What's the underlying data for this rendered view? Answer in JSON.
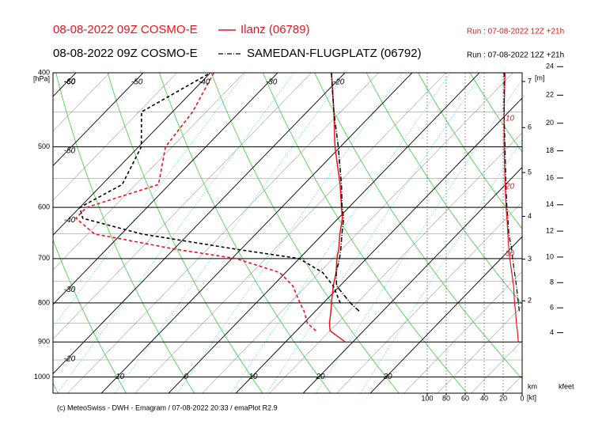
{
  "chart_data": {
    "type": "emagram",
    "y_label": "[hPa]",
    "ylim": [
      400,
      1050
    ],
    "yticks": [
      400,
      500,
      600,
      700,
      800,
      900,
      1000
    ],
    "log_y": true,
    "xticks": [
      -60,
      -50,
      -40,
      -30,
      -20,
      -10,
      0,
      10,
      20,
      30
    ],
    "height_label": "[m]",
    "km_label": "km",
    "km_ticks": [
      2,
      3,
      4,
      5,
      6,
      7
    ],
    "kfeet_label": "kfeet",
    "kfeet_ticks": [
      4,
      6,
      8,
      10,
      12,
      14,
      16,
      18,
      20,
      22,
      24
    ],
    "wind_unit": "[kt]",
    "wind_lim": [
      100,
      0
    ],
    "wind_ticks": [
      100,
      80,
      60,
      40,
      20,
      0
    ],
    "annotations": [
      "10",
      "20",
      "30"
    ],
    "levels": [
      900,
      870,
      850,
      820,
      800,
      760,
      730,
      700,
      680,
      650,
      620,
      600,
      560,
      500,
      450,
      400
    ],
    "stations": [
      {
        "model": "08-08-2022 09Z COSMO-E",
        "name": "Ilanz (06789)",
        "run": "Run : 07-08-2022 12Z +21h",
        "color": "#e8141c",
        "line": "solid",
        "temperature": [
          18.9,
          15,
          13.8,
          12.3,
          11.2,
          9,
          7.5,
          5.6,
          4.5,
          2.5,
          0.6,
          -1.1,
          -4.6,
          -10.8,
          -16,
          -22
        ],
        "dewpoint": [
          null,
          12.9,
          10.5,
          8.3,
          6.5,
          3,
          -0.9,
          -9.4,
          -20,
          -34,
          -39,
          -39,
          -31.6,
          -36,
          -37,
          -39.5
        ],
        "wind_speed": [
          4,
          5,
          6,
          7,
          8,
          9,
          11,
          13,
          14,
          15,
          16,
          17,
          18,
          19,
          19,
          18
        ]
      },
      {
        "model": "08-08-2022 09Z COSMO-E",
        "name": "SAMEDAN-FLUGPLATZ (06792)",
        "run": "Run : 07-08-2022 12Z +21h",
        "color": "#000000",
        "line": "dashdot",
        "temperature": [
          null,
          null,
          null,
          16.5,
          14,
          9.5,
          7.5,
          6,
          4.8,
          2.8,
          0.8,
          -1,
          -4.4,
          -10.3,
          -16,
          -22
        ],
        "dewpoint": [
          null,
          null,
          null,
          null,
          12.5,
          9,
          5.5,
          0,
          -11,
          -27,
          -38,
          -40,
          -37,
          -39.6,
          -44.6,
          -40
        ],
        "wind_speed": [
          null,
          null,
          null,
          3,
          4,
          6,
          8,
          10,
          11,
          14,
          15,
          16,
          17,
          18,
          19,
          19
        ]
      }
    ],
    "footer": "(c) MeteoSwiss - DWH - Emagram / 07-08-2022 20:33 / emaPlot R2.9"
  }
}
